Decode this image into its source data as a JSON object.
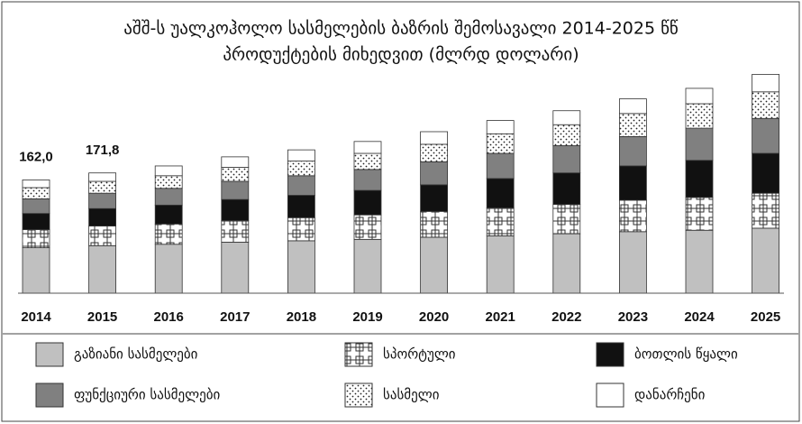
{
  "chart_data": {
    "type": "stacked_bar",
    "title": "აშშ-ს უალკოჰოლო სასმელების ბაზრის შემოსავალი 2014-2025 წწ",
    "subtitle": "პროდუქტების მიხედვით (მლრდ დოლარი)",
    "categories": [
      "2014",
      "2015",
      "2016",
      "2017",
      "2018",
      "2019",
      "2020",
      "2021",
      "2022",
      "2023",
      "2024",
      "2025"
    ],
    "series": [
      {
        "name": "გაზიანი სასმელები",
        "color": "#c0c0c0",
        "values": [
          65,
          68,
          70,
          73,
          75,
          77,
          80,
          82,
          85,
          88,
          90,
          93
        ]
      },
      {
        "name": "სპორტული",
        "color": "#ffffff",
        "pattern": "grid",
        "values": [
          26,
          28,
          29,
          31,
          33,
          35,
          37,
          40,
          42,
          45,
          47,
          50
        ]
      },
      {
        "name": "ბოთლის წყალი",
        "color": "#111111",
        "values": [
          23,
          25,
          27,
          30,
          32,
          35,
          38,
          42,
          45,
          49,
          53,
          57
        ]
      },
      {
        "name": "ფუნქციური სასმელები",
        "color": "#808080",
        "values": [
          21,
          22,
          24,
          26,
          28,
          30,
          33,
          36,
          39,
          42,
          46,
          50
        ]
      },
      {
        "name": "სასმელი",
        "color": "#ffffff",
        "pattern": "dots",
        "values": [
          16,
          17,
          18,
          20,
          21,
          23,
          25,
          28,
          30,
          33,
          35,
          38
        ]
      },
      {
        "name": "დანარჩენი",
        "color": "#ffffff",
        "values": [
          11,
          12,
          14,
          15,
          16,
          17,
          18,
          19,
          20,
          21,
          22,
          25
        ]
      }
    ],
    "totals": [
      162.0,
      171.8,
      null,
      null,
      null,
      null,
      null,
      null,
      null,
      null,
      null,
      null
    ],
    "total_labels": [
      "162,0",
      "171,8",
      null,
      null,
      null,
      null,
      null,
      null,
      null,
      null,
      null,
      null
    ]
  }
}
